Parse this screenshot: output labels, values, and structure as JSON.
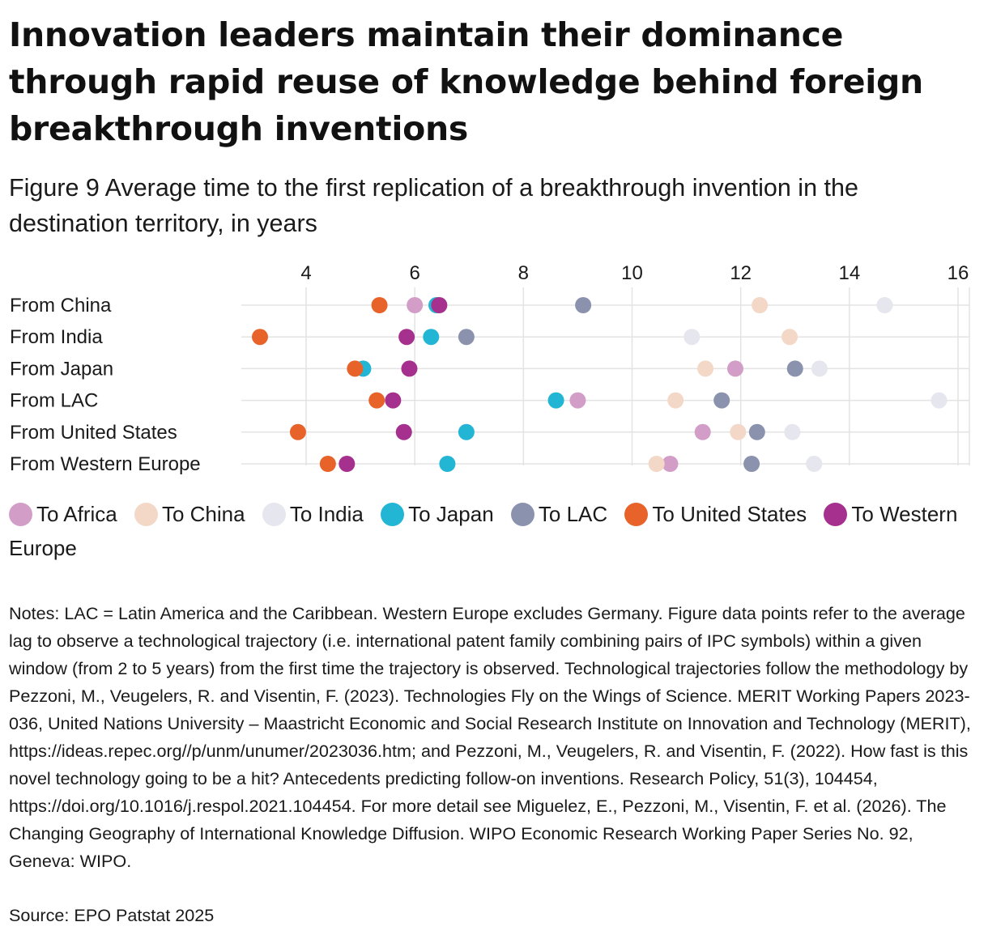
{
  "title": "Innovation leaders maintain their dominance through rapid reuse of knowledge behind foreign breakthrough inventions",
  "subtitle": "Figure 9 Average time to the first replication of a breakthrough invention in the destination territory, in years",
  "chart_data": {
    "type": "scatter",
    "xlim": [
      2.8,
      16.2
    ],
    "xticks": [
      4,
      6,
      8,
      10,
      12,
      14,
      16
    ],
    "grid": true,
    "legend_position": "bottom",
    "categories": [
      "From China",
      "From India",
      "From Japan",
      "From LAC",
      "From United States",
      "From Western Europe"
    ],
    "series": [
      {
        "name": "To Africa",
        "color": "#d29ec7",
        "values": [
          6.0,
          null,
          11.9,
          9.0,
          11.3,
          10.7
        ]
      },
      {
        "name": "To China",
        "color": "#f3d8c8",
        "values": [
          12.35,
          12.9,
          11.35,
          10.8,
          11.95,
          10.45
        ]
      },
      {
        "name": "To India",
        "color": "#e5e6ee",
        "values": [
          14.65,
          11.1,
          13.45,
          15.65,
          12.95,
          13.35
        ]
      },
      {
        "name": "To Japan",
        "color": "#22b6d4",
        "values": [
          6.4,
          6.3,
          5.05,
          8.6,
          6.95,
          6.6
        ]
      },
      {
        "name": "To LAC",
        "color": "#8a92ae",
        "values": [
          9.1,
          6.95,
          13.0,
          11.65,
          12.3,
          12.2
        ]
      },
      {
        "name": "To United States",
        "color": "#e8632a",
        "values": [
          5.35,
          3.15,
          4.9,
          5.3,
          3.85,
          4.4
        ]
      },
      {
        "name": "To Western Europe",
        "color": "#a5308d",
        "values": [
          6.45,
          5.85,
          5.9,
          5.6,
          5.8,
          4.75
        ]
      }
    ]
  },
  "notes": "Notes: LAC = Latin America and the Caribbean. Western Europe excludes Germany. Figure data points refer to the average lag to observe a technological trajectory (i.e. international patent family combining pairs of IPC symbols) within a given window (from 2 to 5 years) from the first time the trajectory is observed. Technological trajectories follow the methodology by Pezzoni, M., Veugelers, R. and Visentin, F. (2023). Technologies Fly on the Wings of Science. MERIT Working Papers 2023-036, United Nations University – Maastricht Economic and Social Research Institute on Innovation and Technology (MERIT), https://ideas.repec.org//p/unm/unumer/2023036.htm; and Pezzoni, M., Veugelers, R. and Visentin, F. (2022). How fast is this novel technology going to be a hit? Antecedents predicting follow-on inventions. Research Policy, 51(3), 104454, https://doi.org/10.1016/j.respol.2021.104454. For more detail see Miguelez, E., Pezzoni, M., Visentin, F. et al. (2026). The Changing Geography of International Knowledge Diffusion. WIPO Economic Research Working Paper Series No. 92, Geneva: WIPO.",
  "source": "Source: EPO Patstat 2025"
}
